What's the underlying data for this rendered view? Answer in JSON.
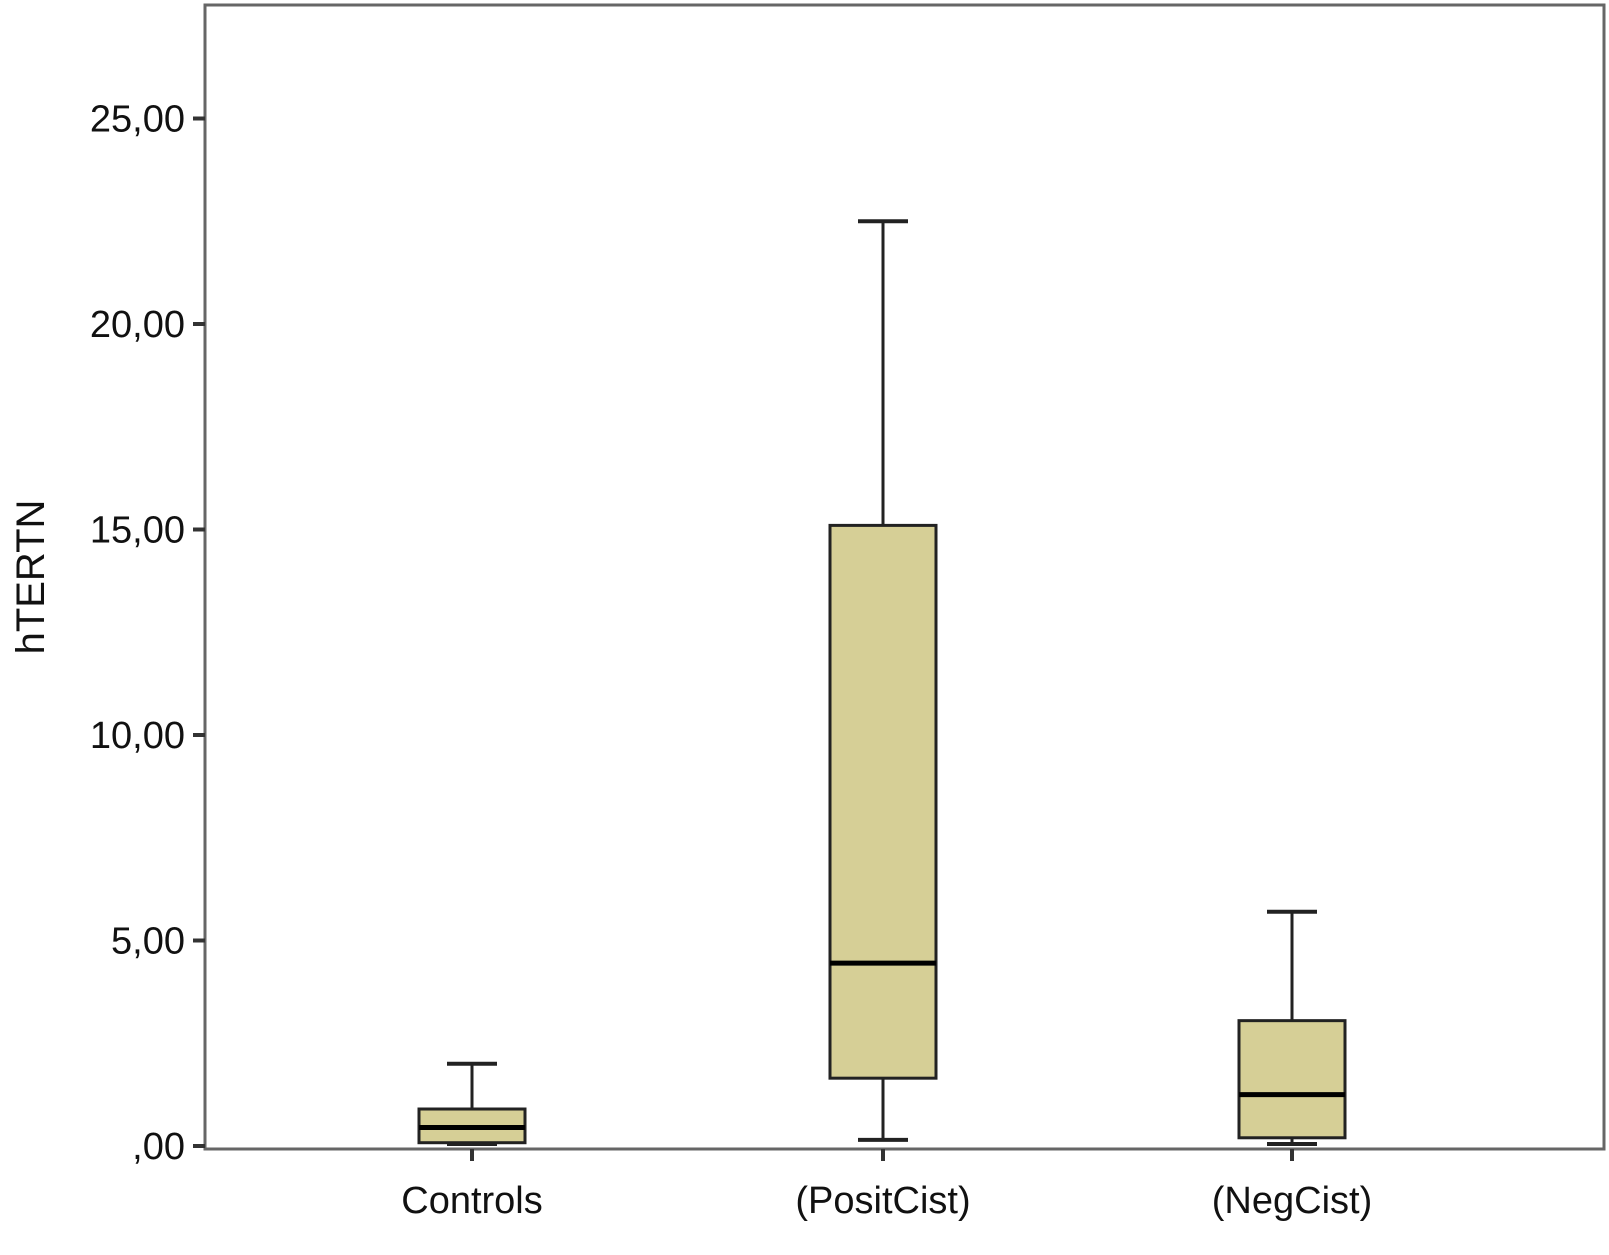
{
  "chart_data": {
    "type": "box",
    "ylabel": "hTERTN",
    "xlabel": "",
    "ylim": [
      0,
      27.5
    ],
    "yticks": [
      {
        "value": 0,
        "label": ",00"
      },
      {
        "value": 5,
        "label": "5,00"
      },
      {
        "value": 10,
        "label": "10,00"
      },
      {
        "value": 15,
        "label": "15,00"
      },
      {
        "value": 20,
        "label": "20,00"
      },
      {
        "value": 25,
        "label": "25,00"
      }
    ],
    "grid": false,
    "categories": [
      "Controls",
      "(PositCist)",
      "(NegCist)"
    ],
    "boxes": [
      {
        "category": "Controls",
        "min": 0.05,
        "q1": 0.08,
        "median": 0.45,
        "q3": 0.9,
        "max": 2.0
      },
      {
        "category": "(PositCist)",
        "min": 0.15,
        "q1": 1.65,
        "median": 4.45,
        "q3": 15.1,
        "max": 22.5
      },
      {
        "category": "(NegCist)",
        "min": 0.05,
        "q1": 0.2,
        "median": 1.25,
        "q3": 3.05,
        "max": 5.7
      }
    ],
    "colors": {
      "box_fill": "#d6cf96",
      "stroke": "#222222",
      "median": "#000000",
      "frame": "#666666"
    }
  }
}
